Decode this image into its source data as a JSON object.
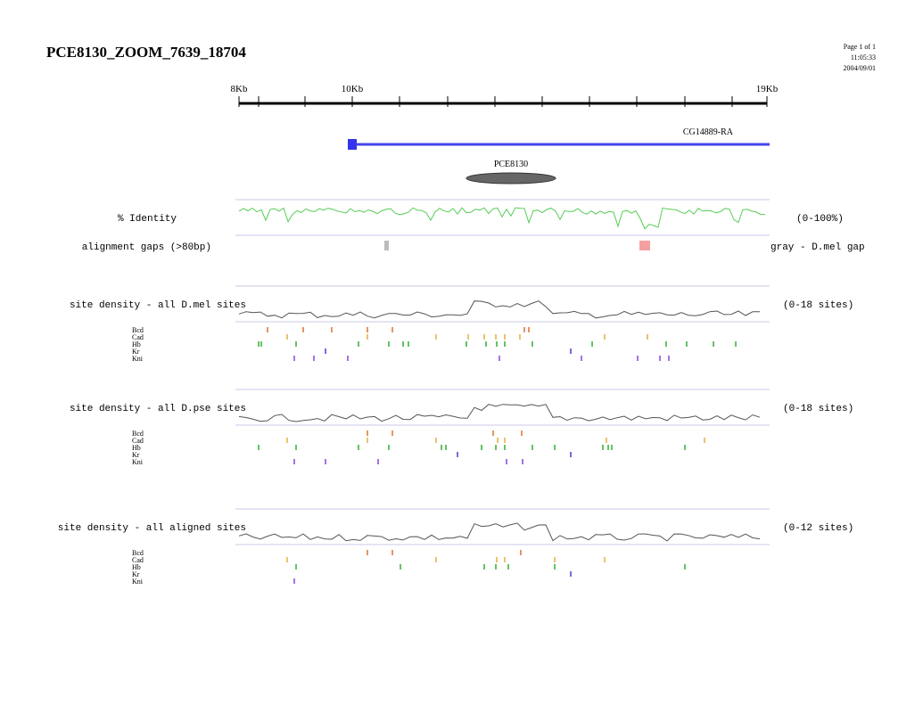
{
  "header": {
    "title": "PCE8130_ZOOM_7639_18704",
    "page": "Page 1 of 1",
    "time": "11:05:33",
    "date": "2004/09/01"
  },
  "ruler": {
    "labels": [
      "8Kb",
      "10Kb",
      "19Kb"
    ]
  },
  "gene": {
    "label": "CG14889-RA"
  },
  "element": {
    "label": "PCE8130"
  },
  "identity": {
    "label": "% Identity",
    "range": "(0-100%)"
  },
  "gaps": {
    "label": "alignment gaps (>80bp)",
    "legend": "gray - D.mel gap"
  },
  "tracks": [
    {
      "label": "site density - all D.mel sites",
      "range": "(0-18 sites)",
      "factors": [
        "Bcd",
        "Cad",
        "Hb",
        "Kr",
        "Kni"
      ]
    },
    {
      "label": "site density - all D.pse sites",
      "range": "(0-18 sites)",
      "factors": [
        "Bcd",
        "Cad",
        "Hb",
        "Kr",
        "Kni"
      ]
    },
    {
      "label": "site density - all aligned sites",
      "range": "(0-12 sites)",
      "factors": [
        "Bcd",
        "Cad",
        "Hb",
        "Kr",
        "Kni"
      ]
    }
  ]
}
